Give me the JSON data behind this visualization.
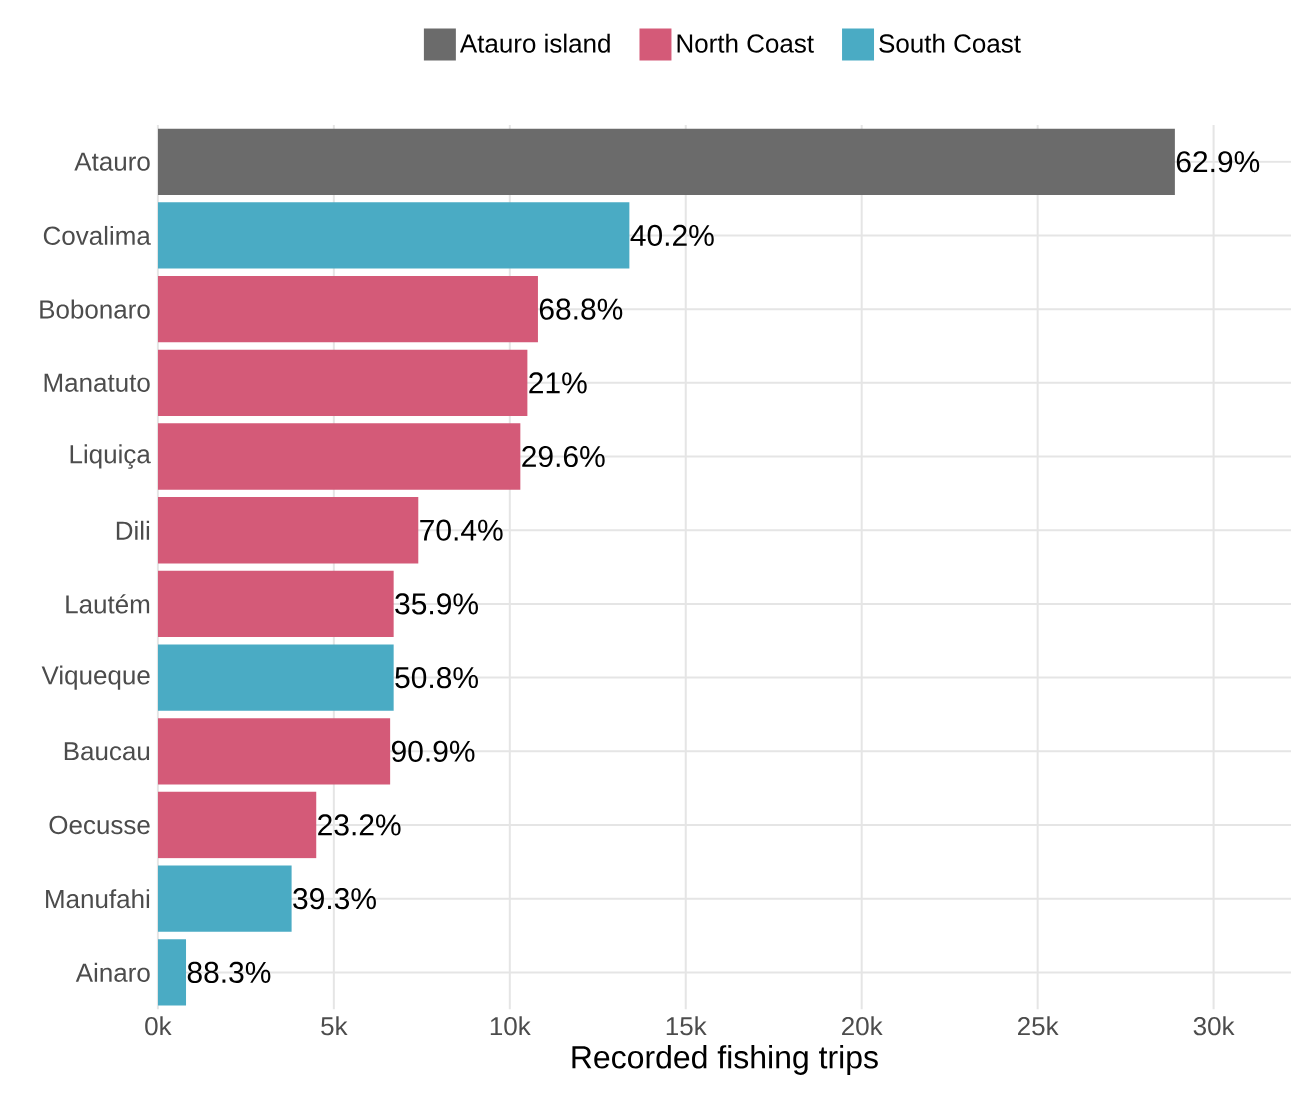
{
  "chart_data": {
    "type": "bar",
    "orientation": "horizontal",
    "xlabel": "Recorded fishing trips",
    "categories": [
      "Atauro",
      "Covalima",
      "Bobonaro",
      "Manatuto",
      "Liquiça",
      "Dili",
      "Lautém",
      "Viqueque",
      "Baucau",
      "Oecusse",
      "Manufahi",
      "Ainaro"
    ],
    "series": [
      {
        "name": "Atauro island",
        "color": "#6b6b6b",
        "values": [
          28900,
          null,
          null,
          null,
          null,
          null,
          null,
          null,
          null,
          null,
          null,
          null
        ]
      },
      {
        "name": "North Coast",
        "color": "#d45a78",
        "values": [
          null,
          null,
          10800,
          10500,
          10300,
          7400,
          6700,
          null,
          6600,
          4500,
          null,
          null
        ]
      },
      {
        "name": "South Coast",
        "color": "#4aabc4",
        "values": [
          null,
          13400,
          null,
          null,
          null,
          null,
          null,
          6700,
          null,
          null,
          3800,
          800
        ]
      }
    ],
    "annotations": [
      {
        "text": "62.9%",
        "x": 28900,
        "y": "Atauro"
      },
      {
        "text": "40.2%",
        "x": 13400,
        "y": "Covalima"
      },
      {
        "text": "68.8%",
        "x": 10800,
        "y": "Bobonaro"
      },
      {
        "text": "21%",
        "x": 10500,
        "y": "Manatuto"
      },
      {
        "text": "29.6%",
        "x": 10300,
        "y": "Liquiça"
      },
      {
        "text": "70.4%",
        "x": 7400,
        "y": "Dili"
      },
      {
        "text": "35.9%",
        "x": 6700,
        "y": "Lautém"
      },
      {
        "text": "50.8%",
        "x": 6700,
        "y": "Viqueque"
      },
      {
        "text": "90.9%",
        "x": 6600,
        "y": "Baucau"
      },
      {
        "text": "23.2%",
        "x": 4500,
        "y": "Oecusse"
      },
      {
        "text": "39.3%",
        "x": 3800,
        "y": "Manufahi"
      },
      {
        "text": "88.3%",
        "x": 800,
        "y": "Ainaro"
      }
    ],
    "xlim": [
      0,
      32200
    ],
    "xticks": [
      {
        "value": 0,
        "label": "0k"
      },
      {
        "value": 5000,
        "label": "5k"
      },
      {
        "value": 10000,
        "label": "10k"
      },
      {
        "value": 15000,
        "label": "15k"
      },
      {
        "value": 20000,
        "label": "20k"
      },
      {
        "value": 25000,
        "label": "25k"
      },
      {
        "value": 30000,
        "label": "30k"
      }
    ],
    "grid": true,
    "legend": "top"
  }
}
